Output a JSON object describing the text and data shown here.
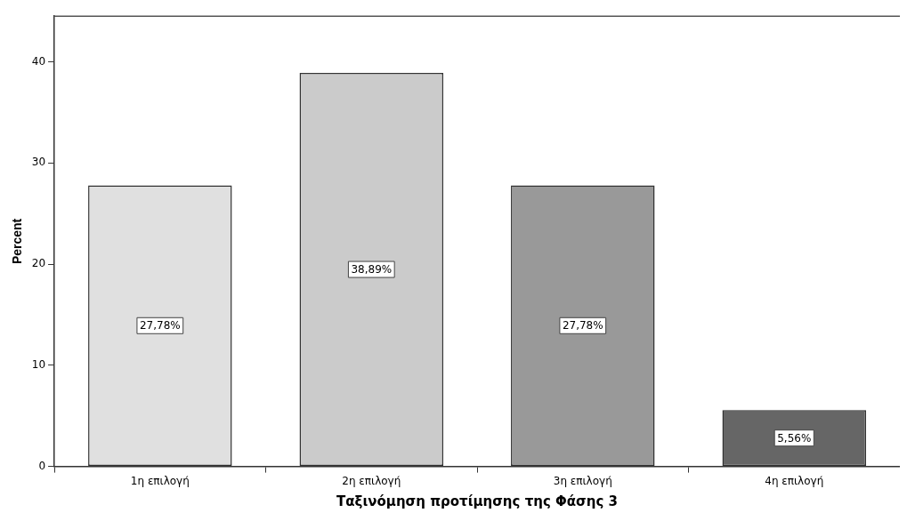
{
  "chart_data": {
    "type": "bar",
    "xlabel": "Ταξινόμηση προτίμησης της Φάσης 3",
    "ylabel": "Percent",
    "categories": [
      "1η επιλογή",
      "2η επιλογή",
      "3η επιλογή",
      "4η επιλογή"
    ],
    "values": [
      27.78,
      38.89,
      27.78,
      5.56
    ],
    "colors": [
      "#e0e0e0",
      "#cbcbcb",
      "#999999",
      "#666666"
    ],
    "value_labels": [
      "27,78%",
      "38,89%",
      "27,78%",
      "5,56%"
    ],
    "ylim": [
      0,
      44.5
    ],
    "yticks": [
      0,
      10,
      20,
      30,
      40
    ],
    "grid": false,
    "legend": false
  }
}
